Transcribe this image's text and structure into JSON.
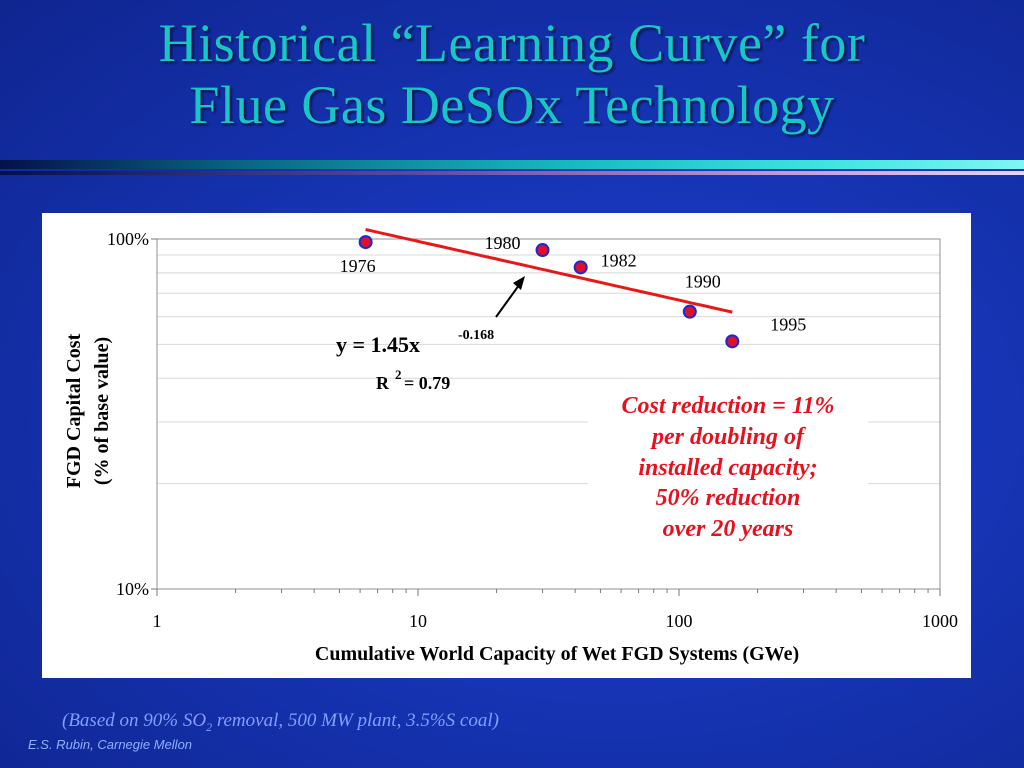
{
  "slide": {
    "title_line1": "Historical “Learning Curve” for",
    "title_line2": "Flue Gas DeSOx Technology",
    "note_prefix": "(Based on 90% SO",
    "note_sub": "2",
    "note_suffix": " removal, 500 MW plant, 3.5%S coal)",
    "credit": "E.S. Rubin, Carnegie Mellon"
  },
  "chart_data": {
    "type": "scatter",
    "xscale": "log",
    "yscale": "log",
    "xlim": [
      1,
      1000
    ],
    "ylim": [
      10,
      100
    ],
    "xticks": [
      "1",
      "10",
      "100",
      "1000"
    ],
    "yticks": [
      "10%",
      "100%"
    ],
    "xlabel": "Cumulative World Capacity of Wet FGD Systems (GWe)",
    "ylabel_line1": "FGD Capital Cost",
    "ylabel_line2": "(% of base value)",
    "grid": true,
    "points": [
      {
        "x": 6.3,
        "y": 98,
        "label": "1976"
      },
      {
        "x": 30,
        "y": 93,
        "label": "1980"
      },
      {
        "x": 42,
        "y": 83,
        "label": "1982"
      },
      {
        "x": 110,
        "y": 62,
        "label": "1990"
      },
      {
        "x": 160,
        "y": 51,
        "label": "1995"
      }
    ],
    "trendline": {
      "coefficient": 1.45,
      "exponent": -0.168,
      "x_range": [
        6.3,
        160
      ],
      "equation_text": "y = 1.45x",
      "exponent_text": "-0.168",
      "r2_prefix": "R",
      "r2_sup": "2",
      "r2_value": " = 0.79"
    },
    "annotation": [
      "Cost reduction = 11%",
      "per doubling of",
      "installed capacity;",
      "50% reduction",
      "over 20 years"
    ],
    "colors": {
      "marker_fill": "#e0102a",
      "marker_edge": "#1a2ad0",
      "trendline": "#e81818",
      "annotation": "#e8101c"
    }
  }
}
